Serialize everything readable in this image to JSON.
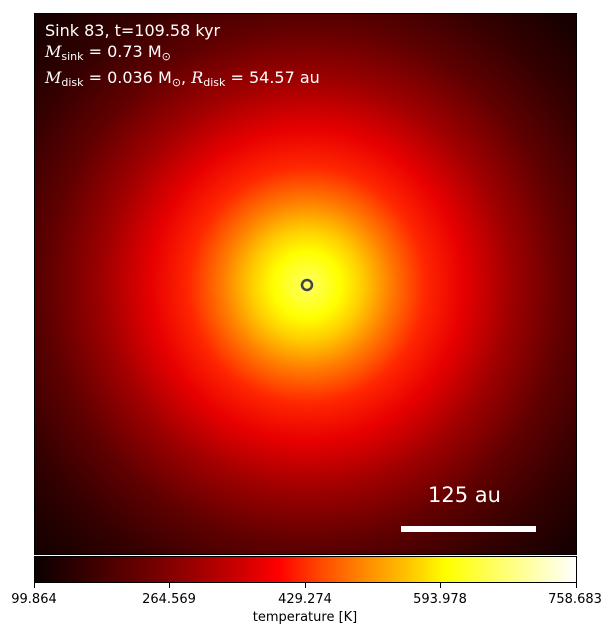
{
  "info": {
    "line1": "Sink 83, t=109.58 kyr",
    "m_sink_symbol": "M",
    "m_sink_sub": "sink",
    "m_sink_value": " = 0.73 M",
    "m_disk_symbol": "M",
    "m_disk_sub": "disk",
    "m_disk_value": " = 0.036 M",
    "r_disk_symbol": "R",
    "r_disk_sub": "disk",
    "r_disk_value": " = 54.57 au",
    "sun_symbol": "⊙"
  },
  "scale_bar": {
    "label": "125 au"
  },
  "colorbar": {
    "label": "temperature [K]",
    "min": 99.864,
    "max": 758.683,
    "ticks": [
      "99.864",
      "264.569",
      "429.274",
      "593.978",
      "758.683"
    ]
  },
  "colors": {
    "colormap": "hot",
    "sink_marker": "#444444"
  }
}
